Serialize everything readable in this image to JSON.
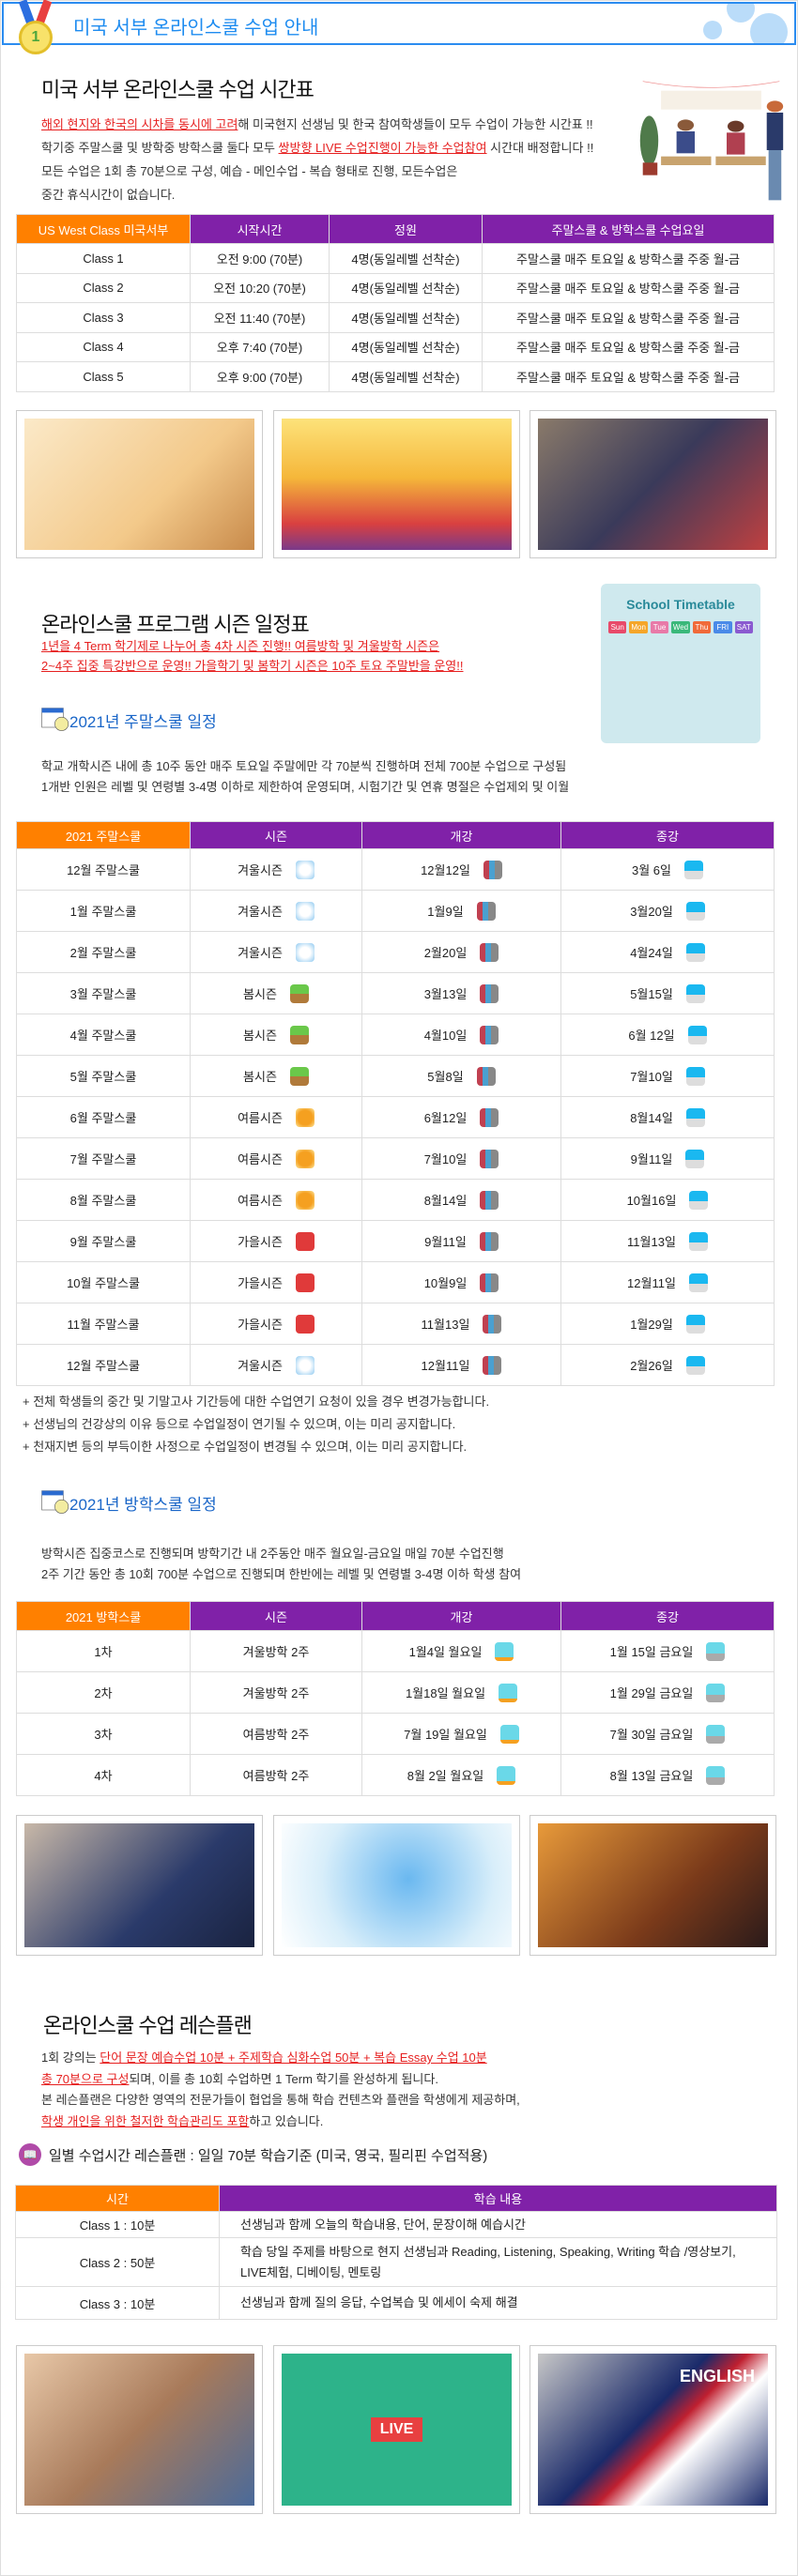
{
  "header": {
    "number": "1",
    "title": "미국 서부 온라인스쿨 수업 안내"
  },
  "timetable": {
    "title": "미국 서부 온라인스쿨 수업 시간표",
    "intro": [
      {
        "red": "해외 현지와 한국의 시차를 동시에 고려",
        "text": "해 미국현지 선생님 및 한국 참여학생들이 모두 수업이 가능한 시간표 !!"
      },
      {
        "text": "학기중 주말스쿨 및 방학중 방학스쿨 둘다 모두 ",
        "red": "쌍방향 LIVE 수업진행이 가능한 수업참여",
        "text2": " 시간대 배정합니다 !!"
      },
      {
        "text": "모든 수업은 1회 총 70분으로 구성, 예습 - 메인수업 - 복습 형태로 진행, 모든수업은"
      },
      {
        "text": "중간 휴식시간이 없습니다."
      }
    ],
    "headers": [
      "US West Class 미국서부",
      "시작시간",
      "정원",
      "주말스쿨 & 방학스쿨 수업요일"
    ],
    "rows": [
      [
        "Class 1",
        "오전 9:00 (70분)",
        "4명(동일레벨 선착순)",
        "주말스쿨 매주 토요일 & 방학스쿨 주중 월-금"
      ],
      [
        "Class 2",
        "오전 10:20 (70분)",
        "4명(동일레벨 선착순)",
        "주말스쿨 매주 토요일 & 방학스쿨 주중 월-금"
      ],
      [
        "Class 3",
        "오전 11:40 (70분)",
        "4명(동일레벨 선착순)",
        "주말스쿨 매주 토요일 & 방학스쿨 주중 월-금"
      ],
      [
        "Class 4",
        "오후 7:40 (70분)",
        "4명(동일레벨 선착순)",
        "주말스쿨 매주 토요일 & 방학스쿨 주중 월-금"
      ],
      [
        "Class 5",
        "오후 9:00 (70분)",
        "4명(동일레벨 선착순)",
        "주말스쿨 매주 토요일 & 방학스쿨 주중 월-금"
      ]
    ]
  },
  "season": {
    "title": "온라인스쿨 프로그램 시즌 일정표",
    "red_lines": [
      "1년을 4 Term 학기제로 나누어 총 4차 시즌 진행!! 여름방학 및 겨울방학 시즌은",
      "2~4주 집중 특강반으로 운영!! 가을학기 및 봄학기 시즌은 10주 토요 주말반을 운영!!"
    ],
    "illustration_text": "School Timetable",
    "days": [
      "Sun",
      "Mon",
      "Tue",
      "Wed",
      "Thu",
      "FRI",
      "SAT"
    ]
  },
  "weekend": {
    "title": "2021년 주말스쿨 일정",
    "desc": [
      "학교 개학시즌 내에 총 10주 동안 매주 토요일 주말에만 각 70분씩 진행하며 전체 700분 수업으로 구성됨",
      "1개반 인원은 레벨 및 연령별 3-4명 이하로 제한하여 운영되며, 시험기간 및 연휴 명절은 수업제외 및 이월"
    ],
    "headers": [
      "2021 주말스쿨",
      "시즌",
      "개강",
      "종강"
    ],
    "rows": [
      [
        "12월 주말스쿨",
        "겨울시즌",
        "12월12일",
        "3월 6일",
        "winter"
      ],
      [
        "1월 주말스쿨",
        "겨울시즌",
        "1월9일",
        "3월20일",
        "winter"
      ],
      [
        "2월 주말스쿨",
        "겨울시즌",
        "2월20일",
        "4월24일",
        "winter"
      ],
      [
        "3월 주말스쿨",
        "봄시즌",
        "3월13일",
        "5월15일",
        "spring"
      ],
      [
        "4월 주말스쿨",
        "봄시즌",
        "4월10일",
        "6월 12일",
        "spring"
      ],
      [
        "5월 주말스쿨",
        "봄시즌",
        "5월8일",
        "7월10일",
        "spring"
      ],
      [
        "6월 주말스쿨",
        "여름시즌",
        "6월12일",
        "8월14일",
        "summer"
      ],
      [
        "7월 주말스쿨",
        "여름시즌",
        "7월10일",
        "9월11일",
        "summer"
      ],
      [
        "8월 주말스쿨",
        "여름시즌",
        "8월14일",
        "10월16일",
        "summer"
      ],
      [
        "9월 주말스쿨",
        "가을시즌",
        "9월11일",
        "11월13일",
        "autumn"
      ],
      [
        "10월 주말스쿨",
        "가을시즌",
        "10월9일",
        "12월11일",
        "autumn"
      ],
      [
        "11월 주말스쿨",
        "가을시즌",
        "11월13일",
        "1월29일",
        "autumn"
      ],
      [
        "12월 주말스쿨",
        "겨울시즌",
        "12월11일",
        "2월26일",
        "winter"
      ]
    ],
    "notes": [
      "+ 전체 학생들의 중간 및 기말고사 기간등에 대한 수업연기 요청이 있을 경우 변경가능합니다.",
      "+ 선생님의 건강상의 이유 등으로 수업일정이 연기될 수 있으며, 이는 미리 공지합니다.",
      "+ 천재지변 등의 부득이한 사정으로 수업일정이 변경될 수 있으며, 이는 미리 공지합니다."
    ]
  },
  "vacation": {
    "title": "2021년 방학스쿨 일정",
    "desc": [
      "방학시즌 집중코스로 진행되며 방학기간 내 2주동안 매주 월요일-금요일 매일 70분 수업진행",
      "2주 기간 동안 총 10회 700분 수업으로 진행되며 한반에는 레벨 및 연령별 3-4명 이하 학생 참여"
    ],
    "headers": [
      "2021 방학스쿨",
      "시즌",
      "개강",
      "종강"
    ],
    "rows": [
      [
        "1차",
        "겨울방학 2주",
        "1월4일 월요일",
        "1월 15일 금요일"
      ],
      [
        "2차",
        "겨울방학 2주",
        "1월18일 월요일",
        "1월 29일 금요일"
      ],
      [
        "3차",
        "여름방학 2주",
        "7월 19일 월요일",
        "7월 30일 금요일"
      ],
      [
        "4차",
        "여름방학 2주",
        "8월 2일 월요일",
        "8월 13일 금요일"
      ]
    ]
  },
  "lesson": {
    "title": "온라인스쿨 수업 레슨플랜",
    "l1a": "1회 강의는 ",
    "l1r": "단어 문장 예습수업 10분 + 주제학습 심화수업 50분 + 복습 Essay 수업 10분",
    "l2r": "총 70분으로 구성",
    "l2a": "되며, 이를 총 10회 수업하면 1 Term 학기를 완성하게 됩니다.",
    "l3": "본 레슨플랜은 다양한 영역의 전문가들이 협업을 통해 학습 컨텐츠와 플랜을 학생에게 제공하며,",
    "l4r": "학생 개인을 위한 철저한 학습관리도 포함",
    "l4a": "하고 있습니다.",
    "subtitle": "일별 수업시간 레슨플랜 : 일일 70분 학습기준 (미국, 영국, 필리핀 수업적용)",
    "headers": [
      "시간",
      "학습 내용"
    ],
    "rows": [
      [
        "Class 1 : 10분",
        "선생님과 함께 오늘의 학습내용, 단어, 문장이해 예습시간"
      ],
      [
        "Class 2 : 50분",
        "학습 당일 주제를 바탕으로 현지 선생님과 Reading, Listening, Speaking, Writing 학습 /영상보기, LIVE체험, 디베이팅, 멘토링"
      ],
      [
        "Class 3 : 10분",
        "선생님과 함께 질의 응답, 수업복습 및 에세이 숙제 해결"
      ]
    ],
    "photo_text": [
      "LIVE",
      "ENGLISH"
    ]
  },
  "colors": {
    "accent_blue": "#1e8cf0",
    "orange": "#ff8000",
    "purple": "#8021a8",
    "red": "#e62020"
  }
}
